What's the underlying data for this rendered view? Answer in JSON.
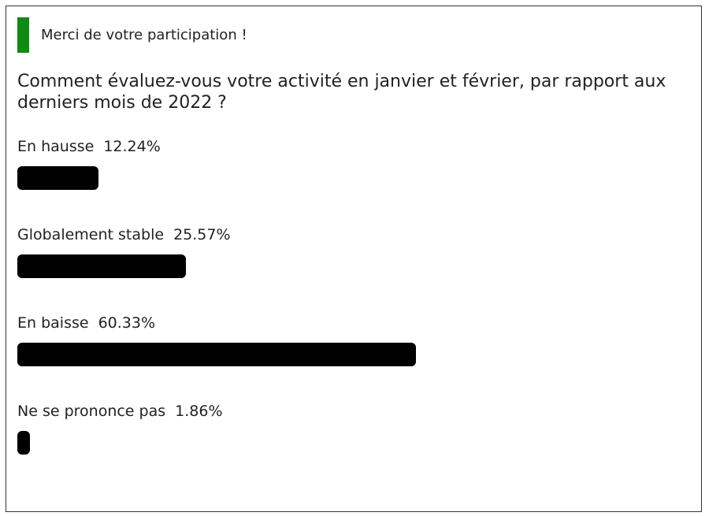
{
  "notice": {
    "text": "Merci de votre participation !",
    "accent_color": "#0f8a12"
  },
  "poll": {
    "question": "Comment évaluez-vous votre activité en janvier et février, par rapport aux derniers mois de 2022 ?",
    "bar_color": "#000000",
    "options": [
      {
        "label": "En hausse",
        "percent_text": "12.24%",
        "percent": 12.24
      },
      {
        "label": "Globalement stable",
        "percent_text": "25.57%",
        "percent": 25.57
      },
      {
        "label": "En baisse",
        "percent_text": "60.33%",
        "percent": 60.33
      },
      {
        "label": "Ne se prononce pas",
        "percent_text": "1.86%",
        "percent": 1.86
      }
    ]
  }
}
